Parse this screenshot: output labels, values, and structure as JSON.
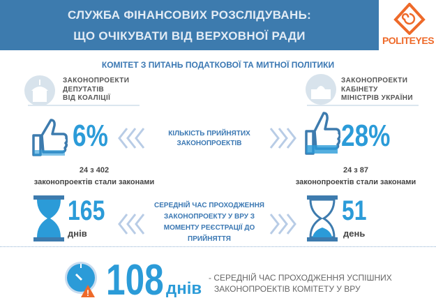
{
  "header": {
    "title_line1": "СЛУЖБА ФІНАНСОВИХ РОЗСЛІДУВАНЬ:",
    "title_line2": "ЩО ОЧІКУВАТИ ВІД ВЕРХОВНОЇ РАДИ"
  },
  "logo": {
    "text": "POLITEYES",
    "color": "#ee6a2a"
  },
  "subtitle": "КОМІТЕТ З ПИТАНЬ ПОДАТКОВОЇ ТА МИТНОЇ ПОЛІТИКИ",
  "left": {
    "label": [
      "ЗАКОНОПРОЕКТИ",
      "ДЕПУТАТІВ",
      "ВІД КОАЛІЦІЇ"
    ],
    "percent": "6%",
    "count": "24 з 402",
    "count_caption": "законопроектів стали законами",
    "days": "165",
    "days_unit": "днів"
  },
  "right": {
    "label": [
      "ЗАКОНОПРОЕКТИ",
      "КАБІНЕТУ",
      "МІНІСТРІВ УКРАЇНИ"
    ],
    "percent": "28%",
    "count": "24 з 87",
    "count_caption": "законопроектів стали законами",
    "days": "51",
    "days_unit": "день"
  },
  "middle": {
    "accepted": [
      "КІЛЬКІСТЬ ПРИЙНЯТИХ",
      "ЗАКОНОПРОЕКТІВ"
    ],
    "avg_time": [
      "СЕРЕДНІЙ ЧАС ПРОХОДЖЕННЯ",
      "ЗАКОНОПРОЕКТУ У ВРУ З",
      "МОМЕНТУ РЕЄСТРАЦІЇ ДО",
      "ПРИЙНЯТТЯ"
    ]
  },
  "footer": {
    "number": "108",
    "unit": "днів",
    "desc_line1": "- СЕРЕДНІЙ ЧАС ПРОХОДЖЕННЯ УСПІШНИХ",
    "desc_line2": "ЗАКОНОПРОЕКТІВ КОМІТЕТУ У ВРУ"
  },
  "colors": {
    "header": "#3d7bae",
    "accent": "#2b9bd8",
    "chevron": "#b8cce6",
    "warning": "#ee6a2a"
  }
}
